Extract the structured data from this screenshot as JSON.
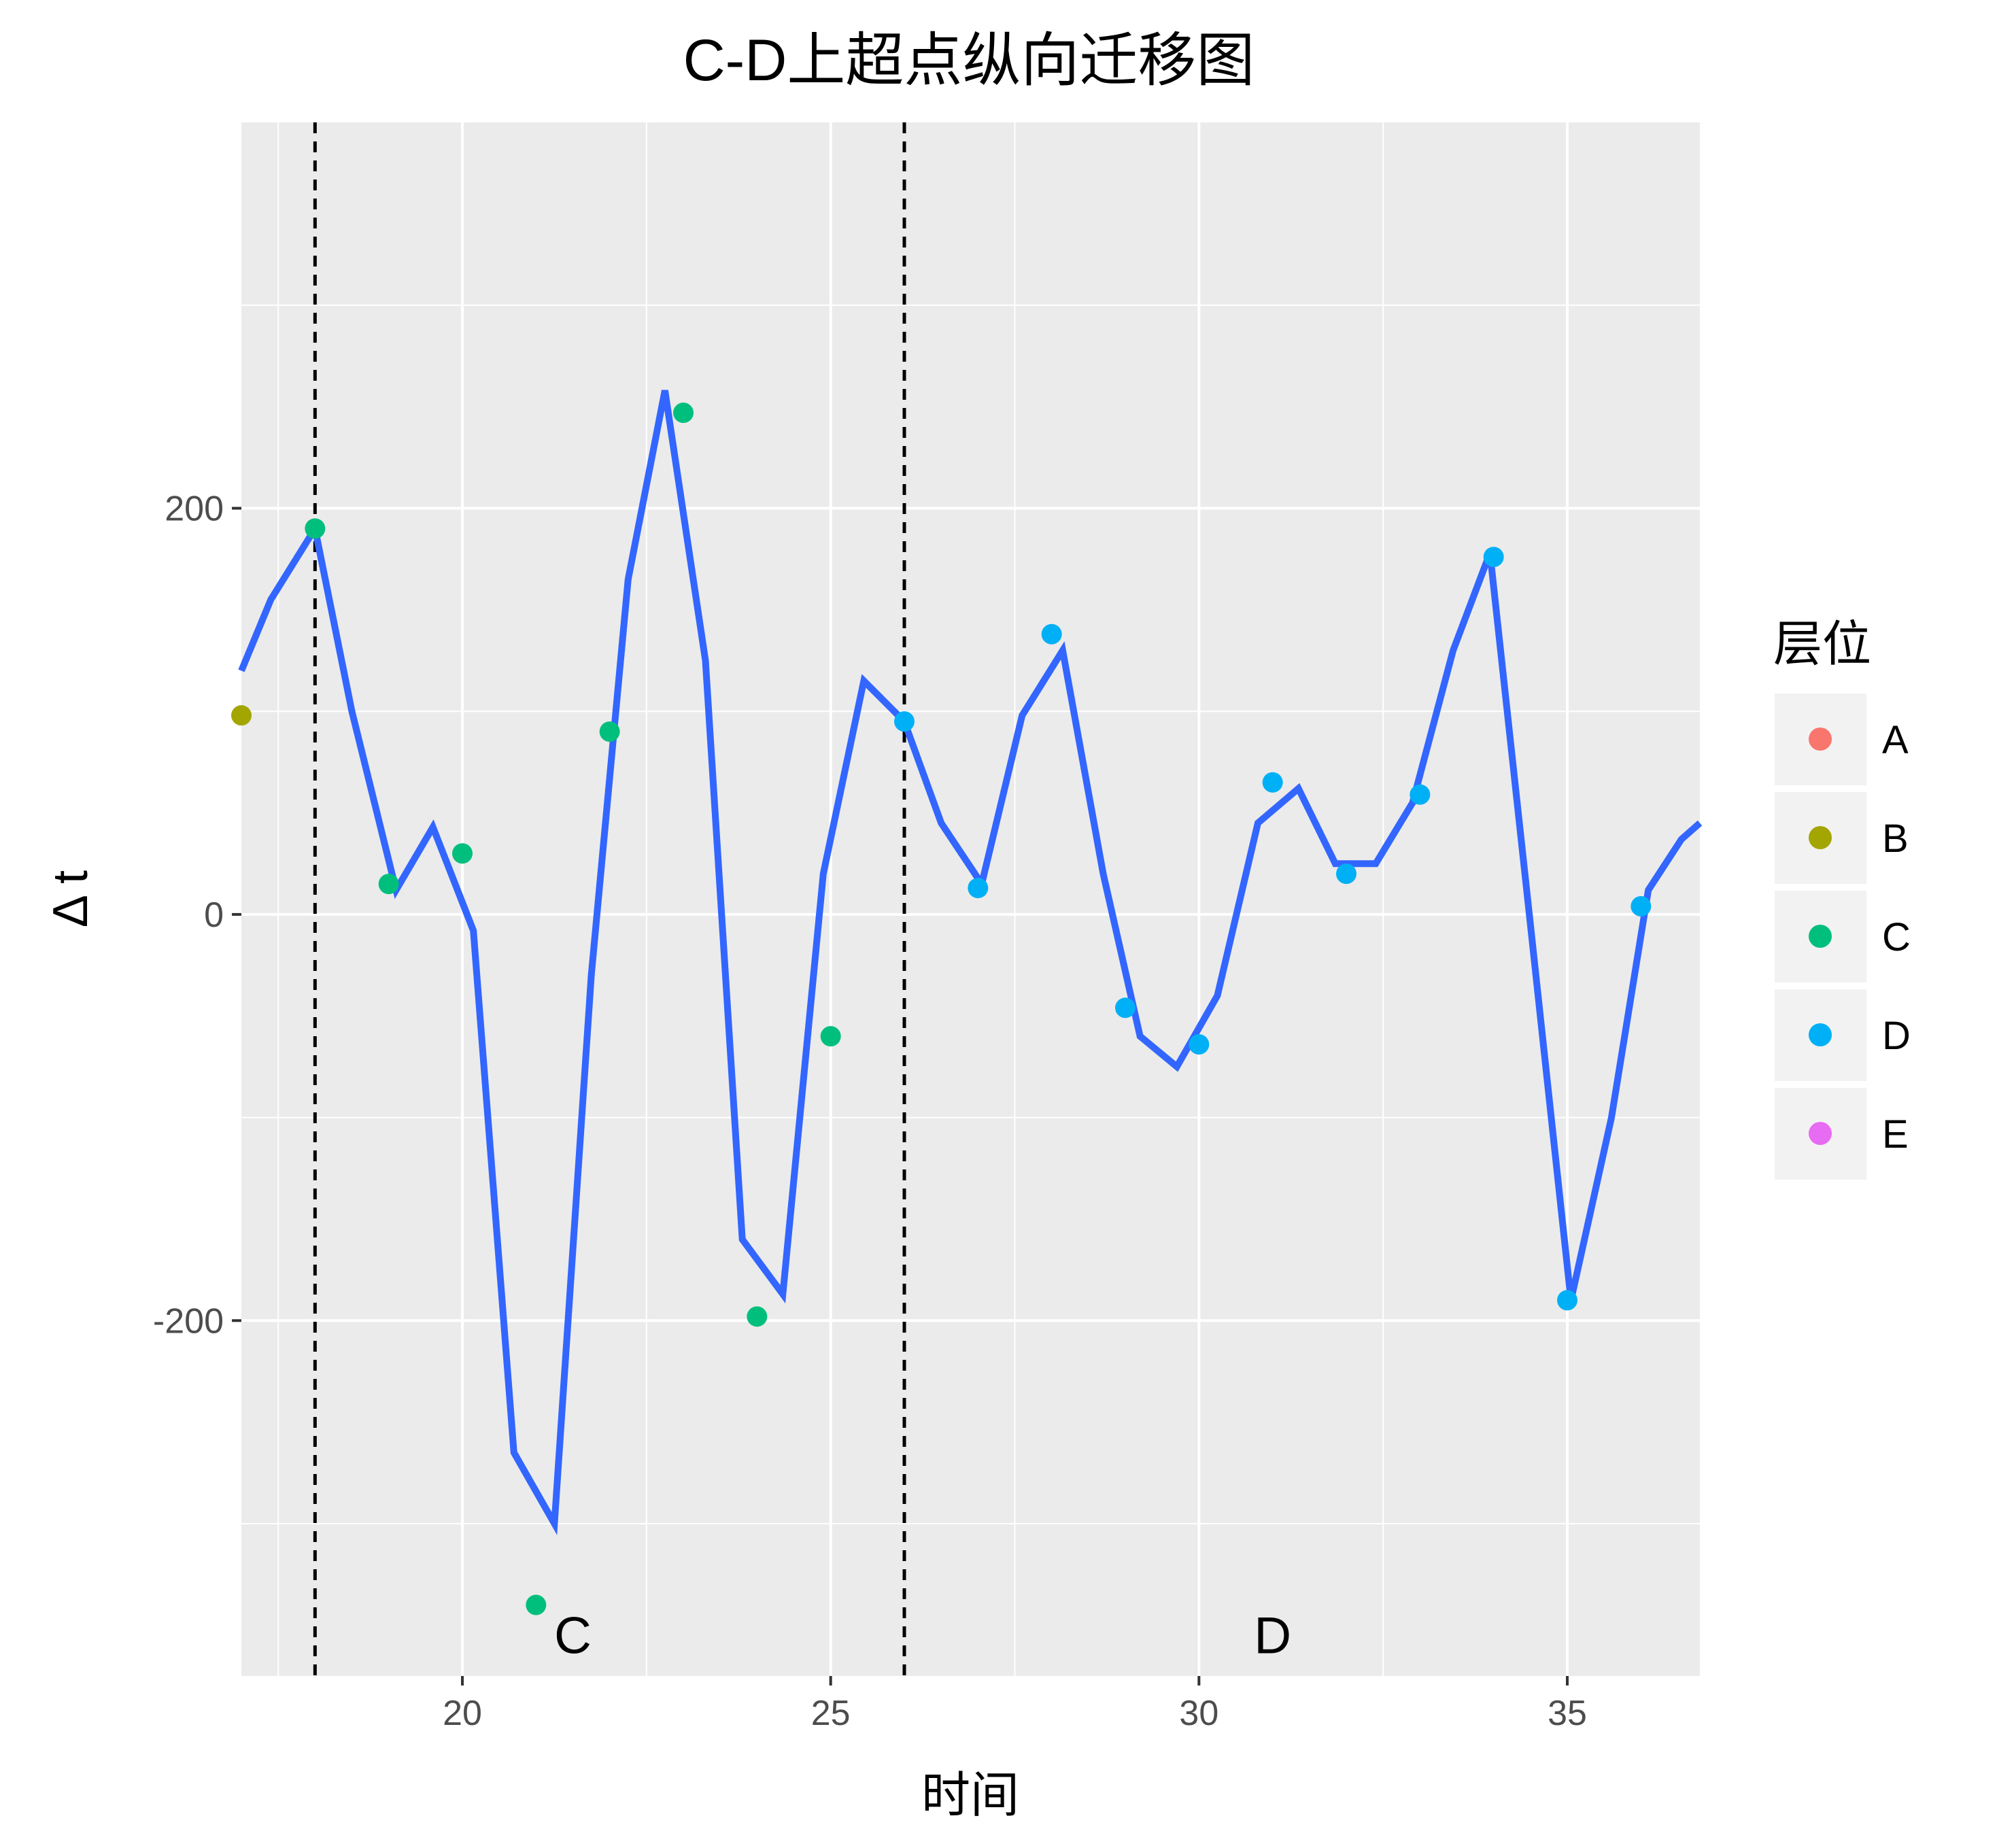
{
  "chart_data": {
    "type": "line",
    "title": "C-D上超点纵向迁移图",
    "xlabel": "时间",
    "ylabel": "Δ t",
    "xlim": [
      17,
      36.8
    ],
    "ylim": [
      -375,
      390
    ],
    "x_ticks": [
      20,
      25,
      30,
      35
    ],
    "y_ticks": [
      -200,
      0,
      200
    ],
    "grid": true,
    "legend": {
      "title": "层位",
      "position": "right",
      "entries": [
        {
          "label": "A",
          "color": "#F8766D"
        },
        {
          "label": "B",
          "color": "#A3A500"
        },
        {
          "label": "C",
          "color": "#00BF7D"
        },
        {
          "label": "D",
          "color": "#00B0F6"
        },
        {
          "label": "E",
          "color": "#E76BF3"
        }
      ]
    },
    "line": {
      "color": "#3366FF",
      "x": [
        17,
        17.4,
        18,
        18.5,
        19.1,
        19.6,
        20.15,
        20.7,
        21.25,
        21.75,
        22.25,
        22.75,
        23.3,
        23.8,
        24.35,
        24.9,
        25.45,
        26,
        26.5,
        27.05,
        27.6,
        28.15,
        28.7,
        29.2,
        29.7,
        30.25,
        30.8,
        31.35,
        31.85,
        32.4,
        32.9,
        33.45,
        33.95,
        34.5,
        35.05,
        35.6,
        36.1,
        36.55,
        36.8
      ],
      "y": [
        120,
        155,
        190,
        100,
        12,
        43,
        -8,
        -265,
        -300,
        -30,
        165,
        258,
        125,
        -160,
        -187,
        20,
        115,
        95,
        45,
        15,
        98,
        130,
        20,
        -60,
        -75,
        -40,
        45,
        62,
        25,
        25,
        55,
        130,
        178,
        -5,
        -190,
        -100,
        12,
        37,
        45
      ]
    },
    "series": [
      {
        "name": "B",
        "color": "#A3A500",
        "points": [
          [
            17,
            98
          ]
        ]
      },
      {
        "name": "C",
        "color": "#00BF7D",
        "points": [
          [
            18,
            190
          ],
          [
            19,
            15
          ],
          [
            20,
            30
          ],
          [
            21,
            -340
          ],
          [
            22,
            90
          ],
          [
            23,
            247
          ],
          [
            24,
            -198
          ],
          [
            25,
            -60
          ]
        ]
      },
      {
        "name": "D",
        "color": "#00B0F6",
        "points": [
          [
            26,
            95
          ],
          [
            27,
            13
          ],
          [
            28,
            138
          ],
          [
            29,
            -46
          ],
          [
            30,
            -64
          ],
          [
            31,
            65
          ],
          [
            32,
            20
          ],
          [
            33,
            59
          ],
          [
            34,
            176
          ],
          [
            35,
            -190
          ],
          [
            36,
            4
          ]
        ]
      }
    ],
    "vlines": [
      18,
      26
    ],
    "annotations": [
      {
        "text": "C",
        "x": 21.5,
        "y": -355
      },
      {
        "text": "D",
        "x": 31,
        "y": -355
      }
    ]
  }
}
